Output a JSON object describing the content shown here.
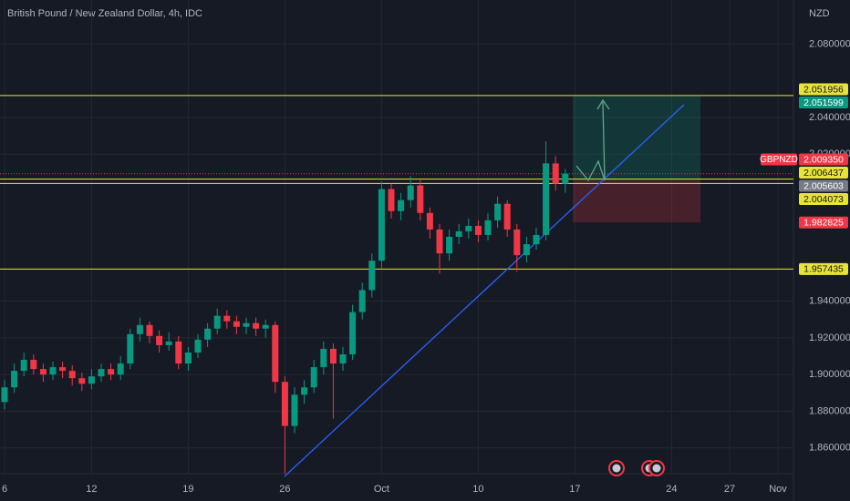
{
  "chart_data": {
    "type": "candlestick",
    "title": "British Pound / New Zealand Dollar, 4h, IDC",
    "y_axis_label": "NZD",
    "symbol": "GBPNZD",
    "up_color": "#089981",
    "down_color": "#f23645",
    "categories": [
      "6",
      null,
      null,
      null,
      null,
      null,
      null,
      null,
      null,
      "12",
      null,
      null,
      null,
      null,
      null,
      null,
      null,
      null,
      null,
      "19",
      null,
      null,
      null,
      null,
      null,
      null,
      null,
      null,
      null,
      "26",
      null,
      null,
      null,
      null,
      null,
      null,
      null,
      null,
      null,
      "Oct",
      null,
      null,
      null,
      null,
      null,
      null,
      null,
      null,
      null,
      "10",
      null,
      null,
      null,
      null,
      null,
      null,
      null,
      null,
      null,
      "17",
      null,
      null,
      null,
      null,
      null,
      null,
      null,
      null,
      null,
      "24",
      null,
      null,
      null,
      null,
      null,
      "27",
      null,
      null,
      null,
      null,
      "Nov",
      null
    ],
    "open": [
      1.885,
      1.893,
      1.902,
      1.908,
      1.903,
      1.9,
      1.904,
      1.902,
      1.898,
      1.895,
      1.899,
      1.903,
      1.9,
      1.906,
      1.922,
      1.927,
      1.921,
      1.916,
      1.918,
      1.906,
      1.912,
      1.919,
      1.925,
      1.932,
      1.929,
      1.926,
      1.928,
      1.925,
      1.927,
      1.896,
      1.872,
      1.889,
      1.893,
      1.904,
      1.914,
      1.906,
      1.911,
      1.934,
      1.946,
      1.962,
      2.001,
      1.989,
      1.995,
      2.003,
      1.988,
      1.979,
      1.966,
      1.975,
      1.978,
      1.981,
      1.976,
      1.984,
      1.993,
      1.979,
      1.965,
      1.971,
      1.976,
      2.015,
      2.004,
      null,
      null,
      null,
      null,
      null,
      null,
      null,
      null,
      null,
      null,
      null,
      null,
      null,
      null,
      null,
      null,
      null,
      null,
      null,
      null,
      null,
      null,
      null
    ],
    "high": [
      1.897,
      1.906,
      1.912,
      1.911,
      1.906,
      1.907,
      1.907,
      1.905,
      1.901,
      1.903,
      1.906,
      1.906,
      1.91,
      1.925,
      1.931,
      1.929,
      1.924,
      1.923,
      1.921,
      1.915,
      1.922,
      1.928,
      1.936,
      1.935,
      1.932,
      1.931,
      1.931,
      1.93,
      1.929,
      1.899,
      1.893,
      1.897,
      1.908,
      1.918,
      1.917,
      1.915,
      1.938,
      1.95,
      1.966,
      2.005,
      2.004,
      1.999,
      2.008,
      2.006,
      1.991,
      1.982,
      1.979,
      1.982,
      1.985,
      1.984,
      1.988,
      1.997,
      1.995,
      1.982,
      1.975,
      1.98,
      2.027,
      2.019,
      2.012,
      null,
      null,
      null,
      null,
      null,
      null,
      null,
      null,
      null,
      null,
      null,
      null,
      null,
      null,
      null,
      null,
      null,
      null,
      null,
      null,
      null,
      null,
      null
    ],
    "low": [
      1.881,
      1.89,
      1.899,
      1.9,
      1.896,
      1.897,
      1.898,
      1.894,
      1.891,
      1.892,
      1.896,
      1.897,
      1.897,
      1.903,
      1.918,
      1.917,
      1.912,
      1.913,
      1.903,
      1.902,
      1.909,
      1.915,
      1.922,
      1.925,
      1.922,
      1.922,
      1.921,
      1.92,
      1.89,
      1.846,
      1.868,
      1.884,
      1.89,
      1.9,
      1.876,
      1.902,
      1.908,
      1.93,
      1.942,
      1.958,
      1.985,
      1.984,
      1.991,
      1.984,
      1.974,
      1.955,
      1.962,
      1.971,
      1.974,
      1.972,
      1.973,
      1.98,
      1.975,
      1.956,
      1.961,
      1.968,
      1.973,
      2.0,
      1.999,
      null,
      null,
      null,
      null,
      null,
      null,
      null,
      null,
      null,
      null,
      null,
      null,
      null,
      null,
      null,
      null,
      null,
      null,
      null,
      null,
      null,
      null,
      null
    ],
    "close": [
      1.893,
      1.902,
      1.908,
      1.903,
      1.9,
      1.904,
      1.902,
      1.898,
      1.895,
      1.899,
      1.903,
      1.9,
      1.906,
      1.922,
      1.927,
      1.921,
      1.916,
      1.918,
      1.906,
      1.912,
      1.919,
      1.925,
      1.932,
      1.929,
      1.926,
      1.928,
      1.925,
      1.927,
      1.896,
      1.872,
      1.889,
      1.893,
      1.904,
      1.914,
      1.906,
      1.911,
      1.934,
      1.946,
      1.962,
      2.001,
      1.989,
      1.995,
      2.003,
      1.988,
      1.979,
      1.966,
      1.975,
      1.978,
      1.981,
      1.976,
      1.984,
      1.993,
      1.979,
      1.965,
      1.971,
      1.976,
      2.015,
      2.004,
      2.00935,
      null,
      null,
      null,
      null,
      null,
      null,
      null,
      null,
      null,
      null,
      null,
      null,
      null,
      null,
      null,
      null,
      null,
      null,
      null,
      null,
      null,
      null,
      null
    ],
    "ylim": [
      1.846,
      2.104
    ],
    "yticks": [
      {
        "value": 2.08,
        "label": "2.080000"
      },
      {
        "value": 2.04,
        "label": "2.040000"
      },
      {
        "value": 2.02,
        "label": "2.020000"
      },
      {
        "value": 1.94,
        "label": "1.940000"
      },
      {
        "value": 1.92,
        "label": "1.920000"
      },
      {
        "value": 1.9,
        "label": "1.900000"
      },
      {
        "value": 1.88,
        "label": "1.880000"
      },
      {
        "value": 1.86,
        "label": "1.860000"
      }
    ],
    "grid": true,
    "levels": [
      {
        "value": 2.051956,
        "label": "2.051956"
      },
      {
        "value": 2.006437,
        "label": "2.006437"
      },
      {
        "value": 2.004073,
        "label": "2.004073"
      },
      {
        "value": 1.957435,
        "label": "1.957435"
      }
    ],
    "level_color": "#e8e337",
    "current_price": {
      "value": 2.00935,
      "label": "2.009350"
    },
    "position": {
      "target": {
        "value": 2.051599,
        "label": "2.051599"
      },
      "entry": {
        "value": 2.005603,
        "label": "2.005603"
      },
      "stop": {
        "value": 1.982825,
        "label": "1.982825"
      }
    }
  }
}
